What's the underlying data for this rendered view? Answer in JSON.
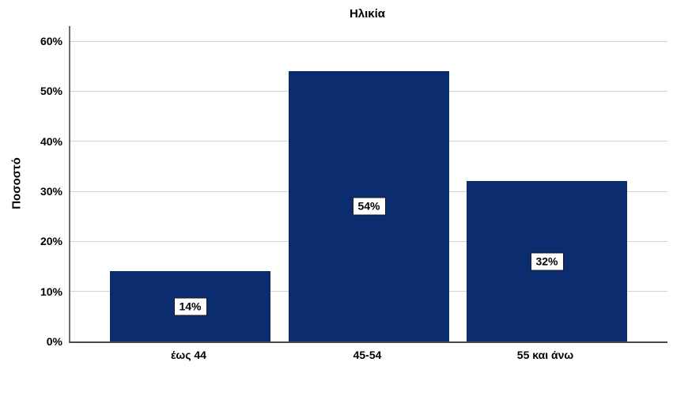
{
  "chart_data": {
    "type": "bar",
    "title": "Ηλικία",
    "xlabel": "",
    "ylabel": "Ποσοστό",
    "categories": [
      "έως 44",
      "45-54",
      "55 και άνω"
    ],
    "values": [
      14,
      54,
      32
    ],
    "value_labels": [
      "14%",
      "54%",
      "32%"
    ],
    "yticks": [
      0,
      10,
      20,
      30,
      40,
      50,
      60
    ],
    "ytick_labels": [
      "0%",
      "10%",
      "20%",
      "30%",
      "40%",
      "50%",
      "60%"
    ],
    "ylim": [
      0,
      63
    ],
    "grid": "horizontal",
    "legend": "none",
    "bar_color": "#0c2c70",
    "gridline_color": "#d4d4d4",
    "axis_color": "#595959",
    "label_box_background": "#ffffff",
    "label_box_border": "#1a1a1a",
    "background": "#ffffff"
  }
}
